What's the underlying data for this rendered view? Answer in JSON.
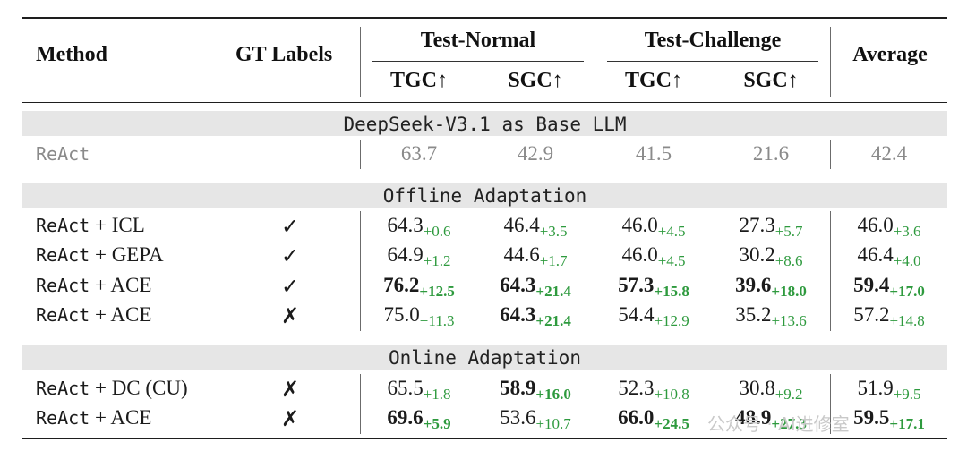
{
  "headers": {
    "method": "Method",
    "gt_labels": "GT Labels",
    "test_normal": "Test-Normal",
    "test_challenge": "Test-Challenge",
    "average": "Average",
    "tgc": "TGC↑",
    "sgc": "SGC↑"
  },
  "base_section": "DeepSeek-V3.1 as Base LLM",
  "baseline": {
    "method": "ReAct",
    "values": [
      "63.7",
      "42.9",
      "41.5",
      "21.6",
      "42.4"
    ]
  },
  "offline": {
    "title": "Offline Adaptation",
    "rows": [
      {
        "method_mono": "ReAct",
        "method_rest": " + ICL",
        "gt": "✓",
        "cells": [
          {
            "v": "64.3",
            "d": "+0.6",
            "b": false
          },
          {
            "v": "46.4",
            "d": "+3.5",
            "b": false
          },
          {
            "v": "46.0",
            "d": "+4.5",
            "b": false
          },
          {
            "v": "27.3",
            "d": "+5.7",
            "b": false
          },
          {
            "v": "46.0",
            "d": "+3.6",
            "b": false
          }
        ]
      },
      {
        "method_mono": "ReAct",
        "method_rest": " + GEPA",
        "gt": "✓",
        "cells": [
          {
            "v": "64.9",
            "d": "+1.2",
            "b": false
          },
          {
            "v": "44.6",
            "d": "+1.7",
            "b": false
          },
          {
            "v": "46.0",
            "d": "+4.5",
            "b": false
          },
          {
            "v": "30.2",
            "d": "+8.6",
            "b": false
          },
          {
            "v": "46.4",
            "d": "+4.0",
            "b": false
          }
        ]
      },
      {
        "method_mono": "ReAct",
        "method_rest": " + ACE",
        "gt": "✓",
        "cells": [
          {
            "v": "76.2",
            "d": "+12.5",
            "b": true
          },
          {
            "v": "64.3",
            "d": "+21.4",
            "b": true
          },
          {
            "v": "57.3",
            "d": "+15.8",
            "b": true
          },
          {
            "v": "39.6",
            "d": "+18.0",
            "b": true
          },
          {
            "v": "59.4",
            "d": "+17.0",
            "b": true
          }
        ]
      },
      {
        "method_mono": "ReAct",
        "method_rest": " + ACE",
        "gt": "✗",
        "cells": [
          {
            "v": "75.0",
            "d": "+11.3",
            "b": false
          },
          {
            "v": "64.3",
            "d": "+21.4",
            "b": true
          },
          {
            "v": "54.4",
            "d": "+12.9",
            "b": false
          },
          {
            "v": "35.2",
            "d": "+13.6",
            "b": false
          },
          {
            "v": "57.2",
            "d": "+14.8",
            "b": false
          }
        ]
      }
    ]
  },
  "online": {
    "title": "Online Adaptation",
    "rows": [
      {
        "method_mono": "ReAct",
        "method_rest": " + DC (CU)",
        "gt": "✗",
        "cells": [
          {
            "v": "65.5",
            "d": "+1.8",
            "b": false
          },
          {
            "v": "58.9",
            "d": "+16.0",
            "b": true
          },
          {
            "v": "52.3",
            "d": "+10.8",
            "b": false
          },
          {
            "v": "30.8",
            "d": "+9.2",
            "b": false
          },
          {
            "v": "51.9",
            "d": "+9.5",
            "b": false
          }
        ]
      },
      {
        "method_mono": "ReAct",
        "method_rest": " + ACE",
        "gt": "✗",
        "cells": [
          {
            "v": "69.6",
            "d": "+5.9",
            "b": true
          },
          {
            "v": "53.6",
            "d": "+10.7",
            "b": false
          },
          {
            "v": "66.0",
            "d": "+24.5",
            "b": true
          },
          {
            "v": "48.9",
            "d": "+27.3",
            "b": true
          },
          {
            "v": "59.5",
            "d": "+17.1",
            "b": true
          }
        ]
      }
    ]
  },
  "watermark": "公众号 · AI进修室"
}
